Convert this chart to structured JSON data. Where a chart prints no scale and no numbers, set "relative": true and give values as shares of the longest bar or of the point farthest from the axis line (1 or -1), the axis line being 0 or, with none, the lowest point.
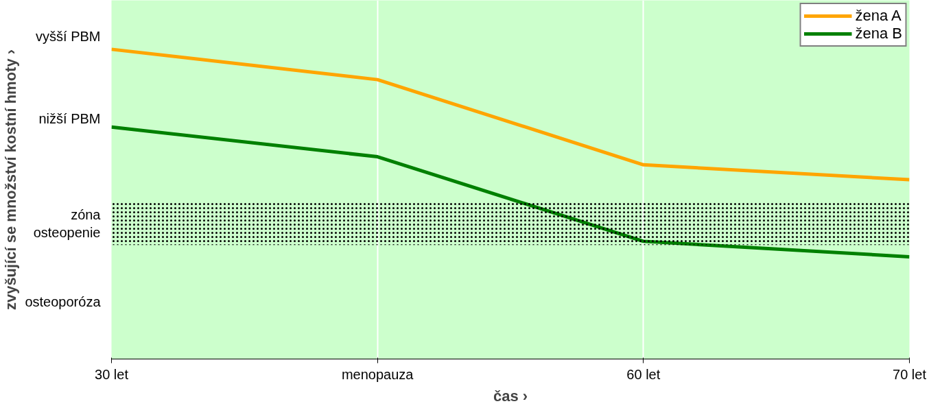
{
  "chart_data": {
    "type": "line",
    "relative": true,
    "xlabel": "čas ›",
    "ylabel": "zvyšující se množství kostní hmoty ›",
    "categories": [
      "30 let",
      "menopauza",
      "60 let",
      "70 let"
    ],
    "series": [
      {
        "name": "žena A",
        "color": "#ffa500",
        "values": [
          1,
          0.902,
          0.627,
          0.579
        ]
      },
      {
        "name": "žena B",
        "color": "#008000",
        "values": [
          0.749,
          0.653,
          0.38,
          0.33
        ]
      }
    ],
    "bands": [
      {
        "axis": "y",
        "from": 0.368,
        "to": 0.507,
        "color": "#000000",
        "label": "zóna\nosteopenie"
      }
    ],
    "annotations": [
      "vyšší PBM",
      "nižší PBM",
      "osteoporóza"
    ],
    "grid": "x",
    "legend": "top right",
    "marker": "none",
    "line_style": "solid"
  }
}
